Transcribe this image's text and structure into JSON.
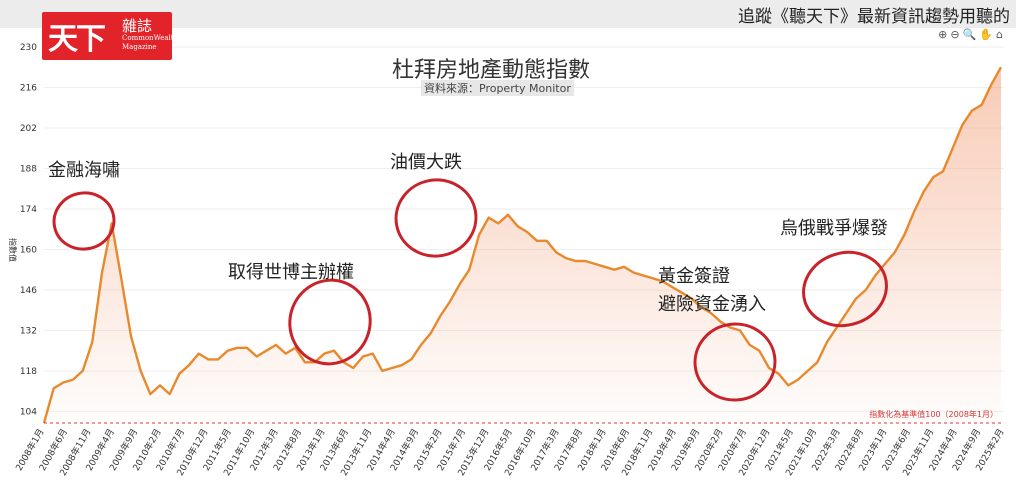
{
  "header": {
    "logo_big": "天下",
    "logo_small": "雜誌",
    "logo_en_1": "CommonWealth",
    "logo_en_2": "Magazine",
    "banner_text": "追蹤《聽天下》最新資訊趨勢用聽的",
    "toolbar_icons": [
      "zoom-in-icon",
      "zoom-out-icon",
      "magnify-icon",
      "pan-icon",
      "home-icon"
    ]
  },
  "chart_data": {
    "type": "area",
    "title": "杜拜房地產動態指數",
    "subtitle": "資料來源：Property Monitor",
    "ylabel": "指數值",
    "ylim": [
      100,
      230
    ],
    "yticks": [
      104,
      118,
      132,
      146,
      160,
      174,
      188,
      202,
      216,
      230
    ],
    "xlabels": [
      "2008年1月",
      "2008年6月",
      "2008年11月",
      "2009年4月",
      "2009年9月",
      "2010年2月",
      "2010年7月",
      "2010年12月",
      "2011年5月",
      "2011年10月",
      "2012年3月",
      "2012年8月",
      "2013年1月",
      "2013年6月",
      "2013年11月",
      "2014年4月",
      "2014年9月",
      "2015年2月",
      "2015年7月",
      "2015年12月",
      "2016年5月",
      "2016年10月",
      "2017年3月",
      "2017年8月",
      "2018年1月",
      "2018年6月",
      "2018年11月",
      "2019年4月",
      "2019年9月",
      "2020年2月",
      "2020年7月",
      "2020年12月",
      "2021年5月",
      "2021年10月",
      "2022年3月",
      "2022年8月",
      "2023年1月",
      "2023年6月",
      "2023年11月",
      "2024年4月",
      "2024年9月",
      "2025年2月"
    ],
    "series": [
      {
        "values": [
          100,
          112,
          114,
          115,
          118,
          128,
          152,
          169,
          150,
          130,
          118,
          110,
          113,
          110,
          117,
          120,
          124,
          122,
          122,
          125,
          126,
          126,
          123,
          125,
          127,
          124,
          126,
          121,
          121,
          124,
          125,
          121,
          119,
          123,
          124,
          118,
          119,
          120,
          122,
          127,
          131,
          137,
          142,
          148,
          153,
          165,
          171,
          169,
          172,
          168,
          166,
          163,
          163,
          159,
          157,
          156,
          156,
          155,
          154,
          153,
          154,
          152,
          151,
          150,
          149,
          147,
          145,
          143,
          140,
          138,
          135,
          133,
          132,
          127,
          125,
          119,
          117,
          113,
          115,
          118,
          121,
          128,
          133,
          138,
          143,
          146,
          151,
          155,
          159,
          165,
          173,
          180,
          185,
          187,
          195,
          203,
          208,
          210,
          217,
          223
        ]
      }
    ],
    "baseline": {
      "value": 100,
      "label": "指數化為基準值100（2008年1月）"
    },
    "annotations": [
      "金融海嘯",
      "取得世博主辦權",
      "油價大跌",
      "黃金簽證",
      "避險資金湧入",
      "烏俄戰爭爆發"
    ]
  }
}
